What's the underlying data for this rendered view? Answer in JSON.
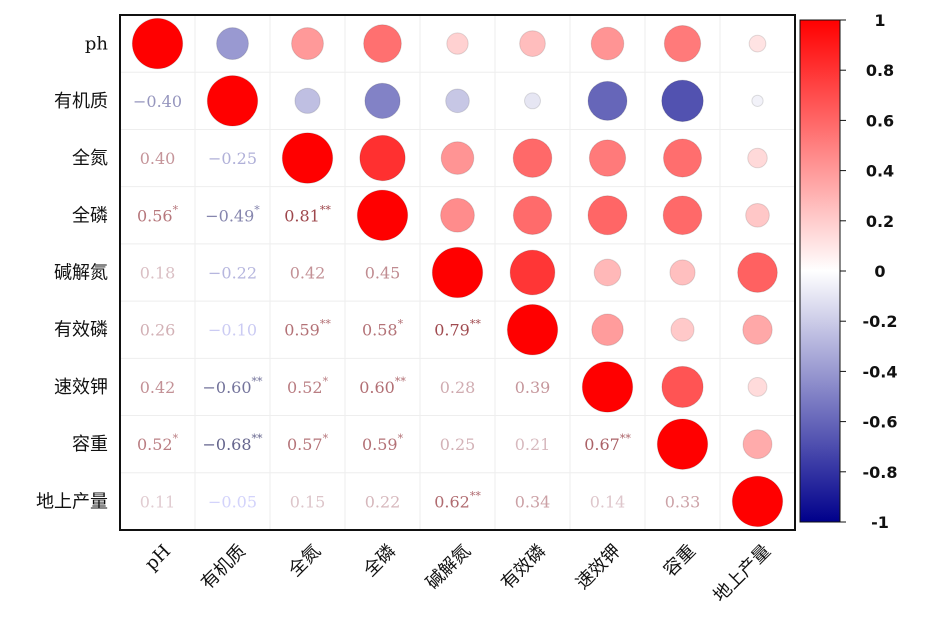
{
  "chart_data": {
    "type": "heatmap",
    "style": "correlation matrix: circles in upper triangle and diagonal, coefficient text in lower triangle",
    "row_labels": [
      "ph",
      "有机质",
      "全氮",
      "全磷",
      "碱解氮",
      "有效磷",
      "速效钾",
      "容重",
      "地上产量"
    ],
    "col_labels": [
      "pH",
      "有机质",
      "全氮",
      "全磷",
      "碱解氮",
      "有效磷",
      "速效钾",
      "容重",
      "地上产量"
    ],
    "matrix": [
      [
        1.0,
        -0.4,
        0.4,
        0.56,
        0.18,
        0.26,
        0.42,
        0.52,
        0.11
      ],
      [
        -0.4,
        1.0,
        -0.25,
        -0.49,
        -0.22,
        -0.1,
        -0.6,
        -0.68,
        -0.05
      ],
      [
        0.4,
        -0.25,
        1.0,
        0.81,
        0.42,
        0.59,
        0.52,
        0.57,
        0.15
      ],
      [
        0.56,
        -0.49,
        0.81,
        1.0,
        0.45,
        0.58,
        0.6,
        0.59,
        0.22
      ],
      [
        0.18,
        -0.22,
        0.42,
        0.45,
        1.0,
        0.79,
        0.28,
        0.25,
        0.62
      ],
      [
        0.26,
        -0.1,
        0.59,
        0.58,
        0.79,
        1.0,
        0.39,
        0.21,
        0.34
      ],
      [
        0.42,
        -0.6,
        0.52,
        0.6,
        0.28,
        0.39,
        1.0,
        0.67,
        0.14
      ],
      [
        0.52,
        -0.68,
        0.57,
        0.59,
        0.25,
        0.21,
        0.67,
        1.0,
        0.33
      ],
      [
        0.11,
        -0.05,
        0.15,
        0.22,
        0.62,
        0.34,
        0.14,
        0.33,
        1.0
      ]
    ],
    "lower_triangle_text": [
      {
        "row": 1,
        "col": 0,
        "text": "−0.40",
        "stars": ""
      },
      {
        "row": 2,
        "col": 0,
        "text": "0.40",
        "stars": ""
      },
      {
        "row": 2,
        "col": 1,
        "text": "−0.25",
        "stars": ""
      },
      {
        "row": 3,
        "col": 0,
        "text": "0.56",
        "stars": "*"
      },
      {
        "row": 3,
        "col": 1,
        "text": "−0.49",
        "stars": "*"
      },
      {
        "row": 3,
        "col": 2,
        "text": "0.81",
        "stars": "**"
      },
      {
        "row": 4,
        "col": 0,
        "text": "0.18",
        "stars": ""
      },
      {
        "row": 4,
        "col": 1,
        "text": "−0.22",
        "stars": ""
      },
      {
        "row": 4,
        "col": 2,
        "text": "0.42",
        "stars": ""
      },
      {
        "row": 4,
        "col": 3,
        "text": "0.45",
        "stars": ""
      },
      {
        "row": 5,
        "col": 0,
        "text": "0.26",
        "stars": ""
      },
      {
        "row": 5,
        "col": 1,
        "text": "−0.10",
        "stars": ""
      },
      {
        "row": 5,
        "col": 2,
        "text": "0.59",
        "stars": "**"
      },
      {
        "row": 5,
        "col": 3,
        "text": "0.58",
        "stars": "*"
      },
      {
        "row": 5,
        "col": 4,
        "text": "0.79",
        "stars": "**"
      },
      {
        "row": 6,
        "col": 0,
        "text": "0.42",
        "stars": ""
      },
      {
        "row": 6,
        "col": 1,
        "text": "−0.60",
        "stars": "**"
      },
      {
        "row": 6,
        "col": 2,
        "text": "0.52",
        "stars": "*"
      },
      {
        "row": 6,
        "col": 3,
        "text": "0.60",
        "stars": "**"
      },
      {
        "row": 6,
        "col": 4,
        "text": "0.28",
        "stars": ""
      },
      {
        "row": 6,
        "col": 5,
        "text": "0.39",
        "stars": ""
      },
      {
        "row": 7,
        "col": 0,
        "text": "0.52",
        "stars": "*"
      },
      {
        "row": 7,
        "col": 1,
        "text": "−0.68",
        "stars": "**"
      },
      {
        "row": 7,
        "col": 2,
        "text": "0.57",
        "stars": "*"
      },
      {
        "row": 7,
        "col": 3,
        "text": "0.59",
        "stars": "*"
      },
      {
        "row": 7,
        "col": 4,
        "text": "0.25",
        "stars": ""
      },
      {
        "row": 7,
        "col": 5,
        "text": "0.21",
        "stars": ""
      },
      {
        "row": 7,
        "col": 6,
        "text": "0.67",
        "stars": "**"
      },
      {
        "row": 8,
        "col": 0,
        "text": "0.11",
        "stars": ""
      },
      {
        "row": 8,
        "col": 1,
        "text": "−0.05",
        "stars": ""
      },
      {
        "row": 8,
        "col": 2,
        "text": "0.15",
        "stars": ""
      },
      {
        "row": 8,
        "col": 3,
        "text": "0.22",
        "stars": ""
      },
      {
        "row": 8,
        "col": 4,
        "text": "0.62",
        "stars": "**"
      },
      {
        "row": 8,
        "col": 5,
        "text": "0.34",
        "stars": ""
      },
      {
        "row": 8,
        "col": 6,
        "text": "0.14",
        "stars": ""
      },
      {
        "row": 8,
        "col": 7,
        "text": "0.33",
        "stars": ""
      }
    ],
    "colorbar": {
      "ticks": [
        "1",
        "0.8",
        "0.6",
        "0.4",
        "0.2",
        "0",
        "-0.2",
        "-0.4",
        "-0.6",
        "-0.8",
        "-1"
      ],
      "range": [
        -1,
        1
      ],
      "colors": {
        "low": "#00008b",
        "mid": "#ffffff",
        "high": "#ff0000"
      }
    },
    "title": "",
    "xlabel": "",
    "ylabel": ""
  }
}
